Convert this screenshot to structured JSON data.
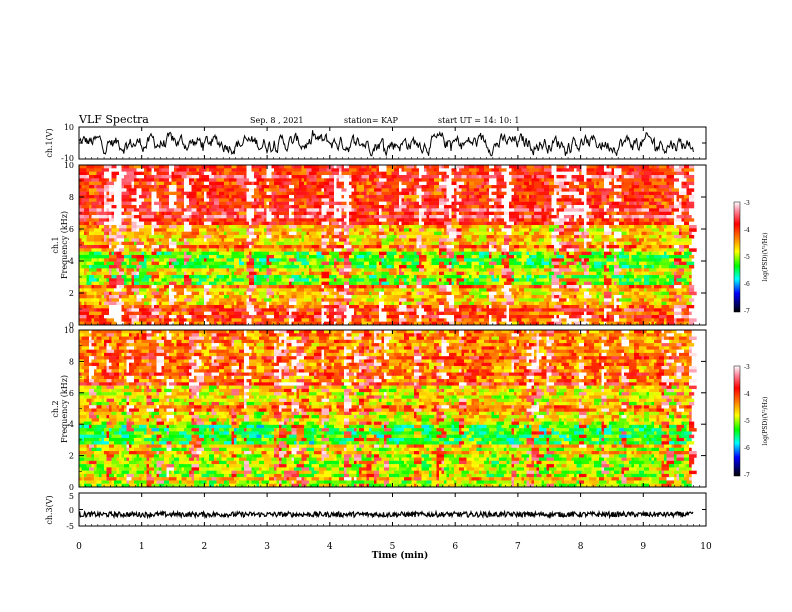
{
  "header": {
    "title": "VLF Spectra",
    "date": "Sep. 8 , 2021",
    "station": "station= KAP",
    "start_ut": "start UT =  14: 10: 1"
  },
  "chart_data": [
    {
      "type": "line",
      "name": "ch1-waveform",
      "ylabel": "ch.1(V)",
      "ylim": [
        -10,
        10
      ],
      "yticks": [
        "10",
        "-10"
      ],
      "xlim": [
        0,
        10
      ],
      "note": "noisy waveform roughly between -7 and 7 V"
    },
    {
      "type": "heatmap",
      "name": "ch1-spectrogram",
      "ylabel": "Frequency (kHz)",
      "chlabel": "ch.1",
      "ylim": [
        0,
        10
      ],
      "yticks": [
        "0",
        "2",
        "4",
        "6",
        "8",
        "10"
      ],
      "xlim": [
        0,
        9.8
      ],
      "colorbar": {
        "label": "log(PSD)(V²/Hz)",
        "range": [
          -7,
          -3
        ],
        "ticks": [
          "-3",
          "-4",
          "-5",
          "-6",
          "-7"
        ]
      }
    },
    {
      "type": "heatmap",
      "name": "ch2-spectrogram",
      "ylabel": "Frequency (kHz)",
      "chlabel": "ch.2",
      "ylim": [
        0,
        10
      ],
      "yticks": [
        "0",
        "2",
        "4",
        "6",
        "8",
        "10"
      ],
      "xlim": [
        0,
        9.8
      ],
      "colorbar": {
        "label": "log(PSD)(V²/Hz)",
        "range": [
          -7,
          -3
        ],
        "ticks": [
          "-3",
          "-4",
          "-5",
          "-6",
          "-7"
        ]
      }
    },
    {
      "type": "line",
      "name": "ch3-waveform",
      "ylabel": "ch.3(V)",
      "ylim": [
        -5,
        5
      ],
      "yticks": [
        "5",
        "0",
        "-5"
      ],
      "xlim": [
        0,
        10
      ],
      "note": "thick flat band near -1.5 V"
    }
  ],
  "xaxis": {
    "label": "Time (min)",
    "ticks": [
      "0",
      "1",
      "2",
      "3",
      "4",
      "5",
      "6",
      "7",
      "8",
      "9",
      "10"
    ]
  },
  "colors": {
    "axis": "#000000",
    "background": "#ffffff"
  }
}
